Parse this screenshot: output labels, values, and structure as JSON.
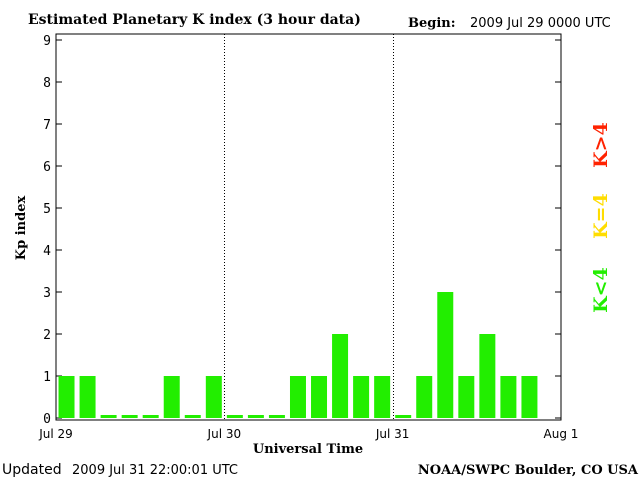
{
  "header": {
    "title": "Estimated Planetary K index (3 hour data)",
    "begin_label": "Begin:",
    "begin_value": "2009 Jul 29 0000 UTC"
  },
  "footer": {
    "updated_label": "Updated",
    "updated_value": "2009 Jul 31 22:00:01 UTC",
    "source": "NOAA/SWPC Boulder, CO USA"
  },
  "legend": {
    "items": [
      {
        "label": "K>4",
        "color": "#ff2200"
      },
      {
        "label": "K=4",
        "color": "#ffdd00"
      },
      {
        "label": "K<4",
        "color": "#22ee00"
      }
    ]
  },
  "chart_data": {
    "type": "bar",
    "title": "Estimated Planetary K index (3 hour data)",
    "xlabel": "Universal Time",
    "ylabel": "Kp index",
    "ylim": [
      0,
      9
    ],
    "yticks": [
      "0",
      "1",
      "2",
      "3",
      "4",
      "5",
      "6",
      "7",
      "8",
      "9"
    ],
    "xticks": [
      "Jul 29",
      "Jul 30",
      "Jul 31",
      "Aug 1"
    ],
    "day_dividers": [
      "Jul 30",
      "Jul 31"
    ],
    "bar_color": "#22ee00",
    "slots_per_day": 8,
    "values": [
      1,
      1,
      0,
      0,
      0,
      1,
      0,
      1,
      0,
      0,
      0,
      1,
      1,
      2,
      1,
      1,
      0,
      1,
      3,
      1,
      2,
      1,
      1
    ]
  }
}
